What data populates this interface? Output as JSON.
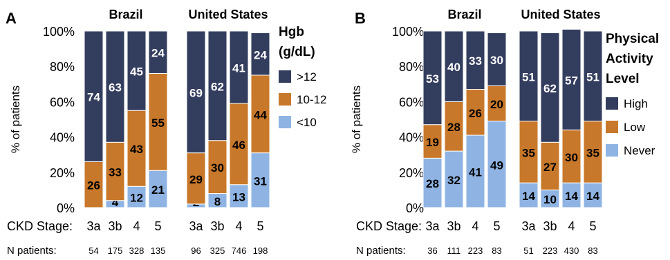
{
  "colors": {
    "high": "#333d5e",
    "mid": "#c8782a",
    "low": "#8fb4e3",
    "border": "#ffffff"
  },
  "row_labels": {
    "stage": "CKD Stage:",
    "n": "N patients:"
  },
  "chart_data": [
    {
      "type": "bar",
      "stacked": true,
      "panel": "A",
      "ylabel": "% of patients",
      "ylim": [
        0,
        100
      ],
      "yticks": [
        "0%",
        "20%",
        "40%",
        "60%",
        "80%",
        "100%"
      ],
      "legend_title": "Hgb (g/dL)",
      "legend_placement": "right",
      "groups": [
        {
          "name": "Brazil",
          "categories": [
            "3a",
            "3b",
            "4",
            "5"
          ],
          "n": [
            "54",
            "175",
            "328",
            "135"
          ]
        },
        {
          "name": "United States",
          "categories": [
            "3a",
            "3b",
            "4",
            "5"
          ],
          "n": [
            "96",
            "325",
            "746",
            "198"
          ]
        }
      ],
      "series": [
        {
          "name": "<10",
          "color_key": "low",
          "values": [
            0,
            4,
            12,
            21,
            2,
            8,
            13,
            31
          ]
        },
        {
          "name": "10-12",
          "color_key": "mid",
          "values": [
            26,
            33,
            43,
            55,
            29,
            30,
            46,
            44
          ]
        },
        {
          "name": ">12",
          "color_key": "high",
          "values": [
            74,
            63,
            45,
            24,
            69,
            62,
            41,
            24
          ]
        }
      ]
    },
    {
      "type": "bar",
      "stacked": true,
      "panel": "B",
      "ylabel": "% of patients",
      "ylim": [
        0,
        100
      ],
      "yticks": [
        "0%",
        "20%",
        "40%",
        "60%",
        "80%",
        "100%"
      ],
      "legend_title": "Physical Activity Level",
      "legend_placement": "right",
      "groups": [
        {
          "name": "Brazil",
          "categories": [
            "3a",
            "3b",
            "4",
            "5"
          ],
          "n": [
            "36",
            "111",
            "223",
            "83"
          ]
        },
        {
          "name": "United States",
          "categories": [
            "3a",
            "3b",
            "4",
            "5"
          ],
          "n": [
            "51",
            "223",
            "430",
            "83"
          ]
        }
      ],
      "series": [
        {
          "name": "Never",
          "color_key": "low",
          "values": [
            28,
            32,
            41,
            49,
            14,
            10,
            14,
            14
          ]
        },
        {
          "name": "Low",
          "color_key": "mid",
          "values": [
            19,
            28,
            26,
            20,
            35,
            27,
            30,
            35
          ]
        },
        {
          "name": "High",
          "color_key": "high",
          "values": [
            53,
            40,
            33,
            30,
            51,
            62,
            57,
            51
          ]
        }
      ]
    }
  ]
}
